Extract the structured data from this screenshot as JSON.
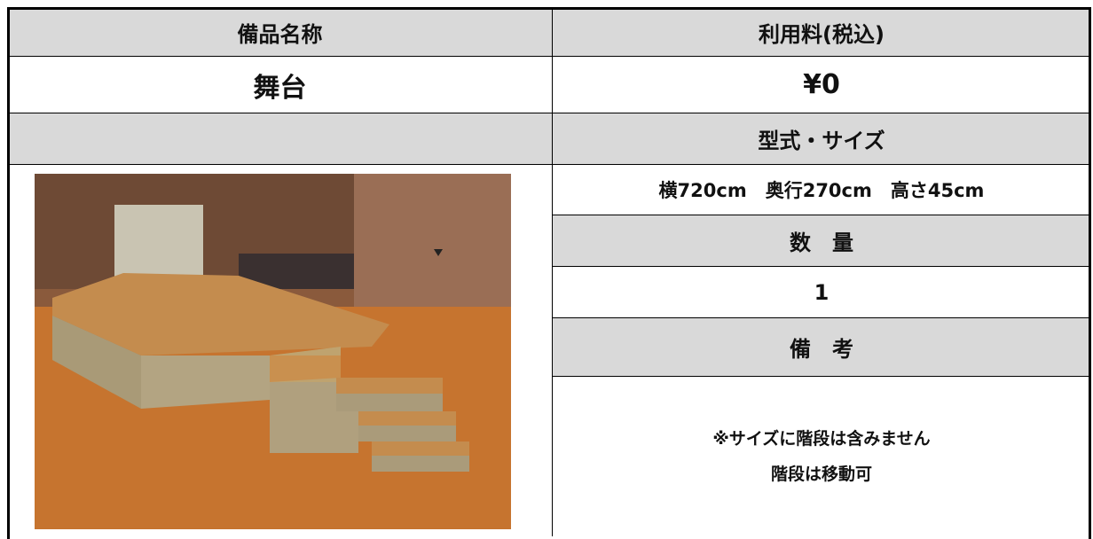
{
  "table": {
    "header": [
      "備品名称",
      "利用料(税込)"
    ],
    "item_name": "舞台",
    "price": "¥0",
    "spec_header": "型式・サイズ",
    "spec": "横720cm　奥行270cm　高さ45cm",
    "quantity_header": "数　量",
    "quantity": "1",
    "notes_header": "備　考",
    "notes": [
      "※サイズに階段は含みません",
      "階段は移動可"
    ]
  }
}
